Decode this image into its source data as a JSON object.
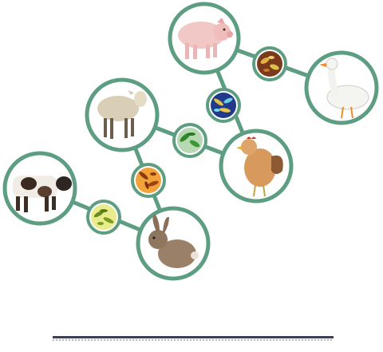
{
  "diagram": {
    "colors": {
      "ring": "#5d9e82",
      "connector": "#5d9e82",
      "background": "#ffffff",
      "rule": "#3c3f62"
    },
    "animals": [
      {
        "id": "pig",
        "icon": "pig-icon"
      },
      {
        "id": "goose",
        "icon": "goose-icon"
      },
      {
        "id": "sheep",
        "icon": "sheep-icon"
      },
      {
        "id": "chicken",
        "icon": "chicken-icon"
      },
      {
        "id": "cow",
        "icon": "cow-icon"
      },
      {
        "id": "rabbit",
        "icon": "rabbit-icon"
      }
    ],
    "microbes": [
      {
        "id": "pig-goose",
        "icon": "bacteria-orange-icon",
        "color": "#d9a23a"
      },
      {
        "id": "pig-chicken",
        "icon": "bacteria-blue-icon",
        "color": "#3a6bc4"
      },
      {
        "id": "sheep-chicken",
        "icon": "bacteria-green-icon",
        "color": "#3f9a3a"
      },
      {
        "id": "sheep-rabbit",
        "icon": "bacteria-rod-orange-icon",
        "color": "#e07a1c"
      },
      {
        "id": "cow-rabbit",
        "icon": "bacteria-yellow-icon",
        "color": "#b9c93a"
      }
    ]
  }
}
